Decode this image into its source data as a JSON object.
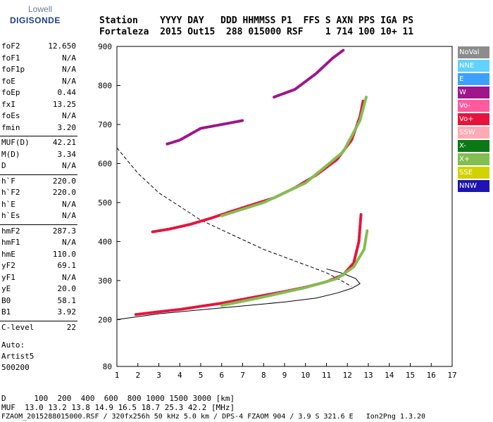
{
  "logo": {
    "top": "Lowell",
    "main": "DIGISONDE"
  },
  "header": {
    "line1": "Station    YYYY DAY   DDD HHMMSS P1  FFS S AXN PPS IGA PS",
    "line2": "Fortaleza  2015 Out15  288 015000 RSF    1 714 100 10+ 11"
  },
  "params": [
    {
      "k": "foF2",
      "v": "12.650",
      "group": 1
    },
    {
      "k": "foF1",
      "v": "N/A",
      "group": 1
    },
    {
      "k": "foF1p",
      "v": "N/A",
      "group": 1
    },
    {
      "k": "foE",
      "v": "N/A",
      "group": 1
    },
    {
      "k": "foEp",
      "v": "0.44",
      "group": 1
    },
    {
      "k": "fxI",
      "v": "13.25",
      "group": 1
    },
    {
      "k": "foEs",
      "v": "N/A",
      "group": 1
    },
    {
      "k": "fmin",
      "v": "3.20",
      "group": 1
    },
    {
      "k": "MUF(D)",
      "v": "42.21",
      "group": 2
    },
    {
      "k": "M(D)",
      "v": "3.34",
      "group": 2
    },
    {
      "k": "D",
      "v": "N/A",
      "group": 2
    },
    {
      "k": "h`F",
      "v": "220.0",
      "group": 3
    },
    {
      "k": "h`F2",
      "v": "220.0",
      "group": 3
    },
    {
      "k": "h`E",
      "v": "N/A",
      "group": 3
    },
    {
      "k": "h`Es",
      "v": "N/A",
      "group": 3
    },
    {
      "k": "hmF2",
      "v": "287.3",
      "group": 4
    },
    {
      "k": "hmF1",
      "v": "N/A",
      "group": 4
    },
    {
      "k": "hmE",
      "v": "110.0",
      "group": 4
    },
    {
      "k": "yF2",
      "v": "69.1",
      "group": 4
    },
    {
      "k": "yF1",
      "v": "N/A",
      "group": 4
    },
    {
      "k": "yE",
      "v": "20.0",
      "group": 4
    },
    {
      "k": "B0",
      "v": "58.1",
      "group": 4
    },
    {
      "k": "B1",
      "v": "3.92",
      "group": 4
    },
    {
      "k": "C-level",
      "v": "22",
      "group": 5
    }
  ],
  "notes": [
    "Auto:",
    "Artist5",
    "500200"
  ],
  "legend": [
    {
      "label": "NoVal",
      "color": "#8c8c8c"
    },
    {
      "label": "NNE",
      "color": "#5fd2ff"
    },
    {
      "label": "E",
      "color": "#3ca0ff"
    },
    {
      "label": "W",
      "color": "#a0148c"
    },
    {
      "label": "Vo-",
      "color": "#ff5aa0"
    },
    {
      "label": "Vo+",
      "color": "#e6143c"
    },
    {
      "label": "SSW",
      "color": "#ffaab4"
    },
    {
      "label": "X-",
      "color": "#0a7814"
    },
    {
      "label": "X+",
      "color": "#82be50"
    },
    {
      "label": "SSE",
      "color": "#d2d200"
    },
    {
      "label": "NNW",
      "color": "#1e14b4"
    }
  ],
  "chart_data": {
    "type": "scatter",
    "title": "",
    "xlabel": "",
    "ylabel": "",
    "xlim": [
      1,
      17
    ],
    "ylim": [
      80,
      900
    ],
    "x_ticks": [
      1,
      2,
      3,
      4,
      5,
      6,
      7,
      8,
      9,
      10,
      11,
      12,
      13,
      14,
      15,
      16,
      17
    ],
    "y_ticks": [
      80,
      200,
      300,
      400,
      500,
      600,
      700,
      800,
      900
    ],
    "series": [
      {
        "color": "#e6143c",
        "traces": [
          [
            [
              1.9,
              213
            ],
            [
              3,
              220
            ],
            [
              4,
              226
            ],
            [
              5,
              234
            ],
            [
              6,
              242
            ],
            [
              7,
              252
            ],
            [
              8,
              262
            ],
            [
              9,
              272
            ],
            [
              10,
              283
            ],
            [
              11,
              297
            ],
            [
              11.8,
              315
            ],
            [
              12.3,
              345
            ],
            [
              12.55,
              400
            ],
            [
              12.65,
              470
            ]
          ],
          [
            [
              2.7,
              425
            ],
            [
              3.5,
              432
            ],
            [
              4.5,
              444
            ],
            [
              5.5,
              460
            ],
            [
              6.5,
              478
            ],
            [
              7.5,
              495
            ],
            [
              8.5,
              512
            ],
            [
              9.5,
              538
            ],
            [
              10.5,
              570
            ],
            [
              11.5,
              610
            ],
            [
              12.2,
              660
            ],
            [
              12.6,
              720
            ],
            [
              12.75,
              760
            ]
          ]
        ]
      },
      {
        "color": "#82be50",
        "traces": [
          [
            [
              6,
              236
            ],
            [
              8,
              258
            ],
            [
              10,
              282
            ],
            [
              11.5,
              305
            ],
            [
              12.3,
              335
            ],
            [
              12.8,
              380
            ],
            [
              12.95,
              430
            ]
          ],
          [
            [
              6,
              466
            ],
            [
              8,
              500
            ],
            [
              10,
              550
            ],
            [
              11.8,
              630
            ],
            [
              12.6,
              710
            ],
            [
              12.9,
              770
            ]
          ]
        ]
      },
      {
        "color": "#a0148c",
        "traces": [
          [
            [
              3.4,
              650
            ],
            [
              4,
              660
            ],
            [
              5,
              690
            ],
            [
              6,
              700
            ],
            [
              7,
              710
            ]
          ],
          [
            [
              8.5,
              770
            ],
            [
              9.5,
              790
            ],
            [
              10.5,
              830
            ],
            [
              11.3,
              870
            ],
            [
              11.8,
              890
            ]
          ]
        ]
      }
    ],
    "reference_curves": [
      {
        "style": "dashed",
        "points": [
          [
            1,
            640
          ],
          [
            2,
            575
          ],
          [
            3,
            525
          ],
          [
            4,
            490
          ],
          [
            5,
            455
          ],
          [
            6,
            430
          ],
          [
            7,
            405
          ],
          [
            8,
            380
          ],
          [
            9,
            360
          ],
          [
            10,
            340
          ],
          [
            11,
            320
          ],
          [
            11.7,
            300
          ],
          [
            12.2,
            285
          ]
        ]
      },
      {
        "style": "solid",
        "points": [
          [
            1,
            200
          ],
          [
            3,
            215
          ],
          [
            5,
            225
          ],
          [
            7,
            235
          ],
          [
            9,
            245
          ],
          [
            10.5,
            255
          ],
          [
            11.5,
            268
          ],
          [
            12.2,
            280
          ],
          [
            12.6,
            292
          ],
          [
            12.4,
            305
          ],
          [
            11.8,
            318
          ],
          [
            11,
            330
          ]
        ]
      }
    ]
  },
  "bottom": {
    "line1": "D      100  200  400  600  800 1000 1500 3000 [km]",
    "line2": "MUF  13.0 13.2 13.8 14.9 16.5 18.7 25.3 42.2 [MHz]",
    "line3": "FZAOM_2015288015000.RSF / 320fx256h 50 kHz 5.0 km / DPS-4 FZAOM 904 / 3.9 S 321.6 E   Ion2Png 1.3.20"
  }
}
